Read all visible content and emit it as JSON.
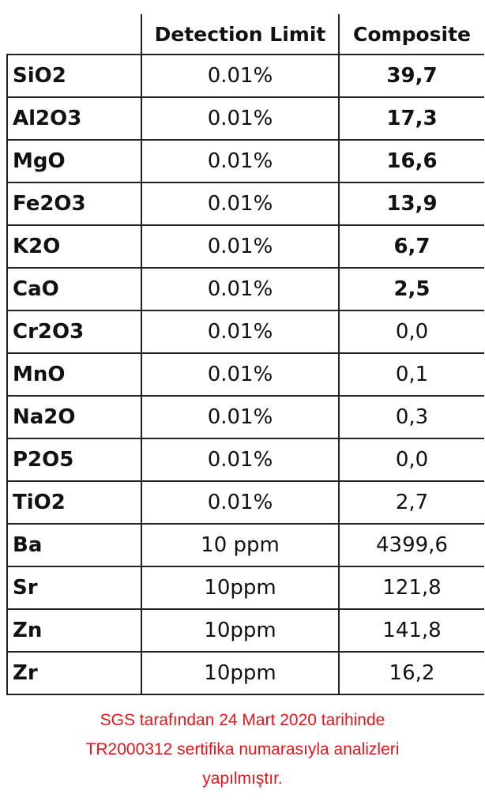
{
  "table": {
    "header": [
      "Detection Limit",
      "Composite"
    ],
    "rows": [
      [
        "SiO2",
        "0.01%",
        "39,7"
      ],
      [
        "Al2O3",
        "0.01%",
        "17,3"
      ],
      [
        "MgO",
        "0.01%",
        "16,6"
      ],
      [
        "Fe2O3",
        "0.01%",
        "13,9"
      ],
      [
        "K2O",
        "0.01%",
        "6,7"
      ],
      [
        "CaO",
        "0.01%",
        "2,5"
      ],
      [
        "Cr2O3",
        "0.01%",
        "0,0"
      ],
      [
        "MnO",
        "0.01%",
        "0,1"
      ],
      [
        "Na2O",
        "0.01%",
        "0,3"
      ],
      [
        "P2O5",
        "0.01%",
        "0,0"
      ],
      [
        "TiO2",
        "0.01%",
        "2,7"
      ],
      [
        "Ba",
        "10 ppm",
        "4399,6"
      ],
      [
        "Sr",
        "10ppm",
        "121,8"
      ],
      [
        "Zn",
        "10ppm",
        "141,8"
      ],
      [
        "Zr",
        "10ppm",
        "16,2"
      ]
    ]
  },
  "footer": {
    "lines": [
      "SGS tarafından 24 Mart 2020 tarihinde",
      "TR2000312 sertifika numarasıyla analizleri",
      "yapılmıştır."
    ]
  }
}
